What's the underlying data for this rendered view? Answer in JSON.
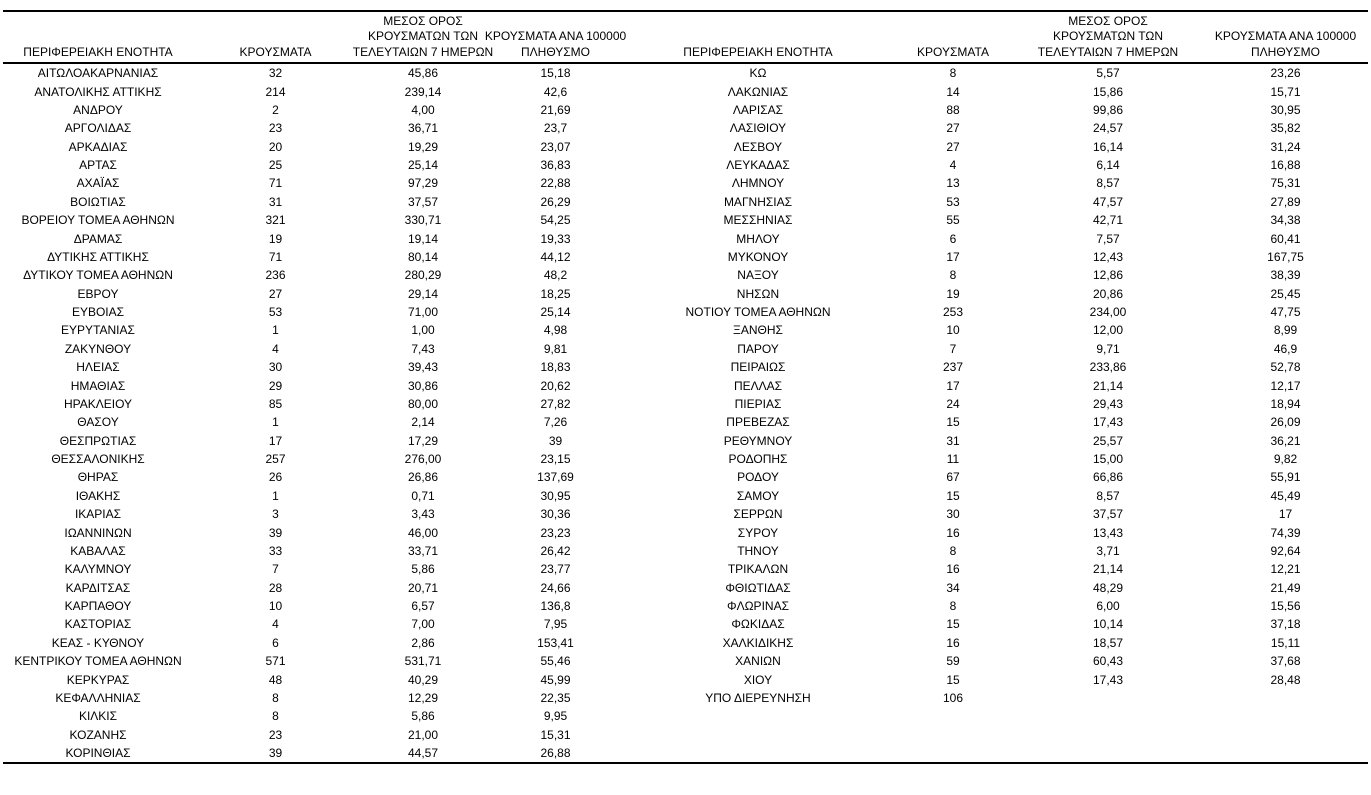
{
  "table": {
    "headers": {
      "region": "ΠΕΡΙΦΕΡΕΙΑΚΗ ΕΝΟΤΗΤΑ",
      "cases": "ΚΡΟΥΣΜΑΤΑ",
      "avg7_line1": "ΜΕΣΟΣ ΟΡΟΣ",
      "avg7_line2": "ΚΡΟΥΣΜΑΤΩΝ ΤΩΝ",
      "avg7_line3": "ΤΕΛΕΥΤΑΙΩΝ 7 ΗΜΕΡΩΝ",
      "per100k_line1": "ΚΡΟΥΣΜΑΤΑ ΑΝΑ 100000",
      "per100k_line2": "ΠΛΗΘΥΣΜΟ"
    },
    "left_rows": [
      [
        "ΑΙΤΩΛΟΑΚΑΡΝΑΝΙΑΣ",
        "32",
        "45,86",
        "15,18"
      ],
      [
        "ΑΝΑΤΟΛΙΚΗΣ ΑΤΤΙΚΗΣ",
        "214",
        "239,14",
        "42,6"
      ],
      [
        "ΑΝΔΡΟΥ",
        "2",
        "4,00",
        "21,69"
      ],
      [
        "ΑΡΓΟΛΙΔΑΣ",
        "23",
        "36,71",
        "23,7"
      ],
      [
        "ΑΡΚΑΔΙΑΣ",
        "20",
        "19,29",
        "23,07"
      ],
      [
        "ΑΡΤΑΣ",
        "25",
        "25,14",
        "36,83"
      ],
      [
        "ΑΧΑΪΑΣ",
        "71",
        "97,29",
        "22,88"
      ],
      [
        "ΒΟΙΩΤΙΑΣ",
        "31",
        "37,57",
        "26,29"
      ],
      [
        "ΒΟΡΕΙΟΥ ΤΟΜΕΑ ΑΘΗΝΩΝ",
        "321",
        "330,71",
        "54,25"
      ],
      [
        "ΔΡΑΜΑΣ",
        "19",
        "19,14",
        "19,33"
      ],
      [
        "ΔΥΤΙΚΗΣ ΑΤΤΙΚΗΣ",
        "71",
        "80,14",
        "44,12"
      ],
      [
        "ΔΥΤΙΚΟΥ ΤΟΜΕΑ ΑΘΗΝΩΝ",
        "236",
        "280,29",
        "48,2"
      ],
      [
        "ΕΒΡΟΥ",
        "27",
        "29,14",
        "18,25"
      ],
      [
        "ΕΥΒΟΙΑΣ",
        "53",
        "71,00",
        "25,14"
      ],
      [
        "ΕΥΡΥΤΑΝΙΑΣ",
        "1",
        "1,00",
        "4,98"
      ],
      [
        "ΖΑΚΥΝΘΟΥ",
        "4",
        "7,43",
        "9,81"
      ],
      [
        "ΗΛΕΙΑΣ",
        "30",
        "39,43",
        "18,83"
      ],
      [
        "ΗΜΑΘΙΑΣ",
        "29",
        "30,86",
        "20,62"
      ],
      [
        "ΗΡΑΚΛΕΙΟΥ",
        "85",
        "80,00",
        "27,82"
      ],
      [
        "ΘΑΣΟΥ",
        "1",
        "2,14",
        "7,26"
      ],
      [
        "ΘΕΣΠΡΩΤΙΑΣ",
        "17",
        "17,29",
        "39"
      ],
      [
        "ΘΕΣΣΑΛΟΝΙΚΗΣ",
        "257",
        "276,00",
        "23,15"
      ],
      [
        "ΘΗΡΑΣ",
        "26",
        "26,86",
        "137,69"
      ],
      [
        "ΙΘΑΚΗΣ",
        "1",
        "0,71",
        "30,95"
      ],
      [
        "ΙΚΑΡΙΑΣ",
        "3",
        "3,43",
        "30,36"
      ],
      [
        "ΙΩΑΝΝΙΝΩΝ",
        "39",
        "46,00",
        "23,23"
      ],
      [
        "ΚΑΒΑΛΑΣ",
        "33",
        "33,71",
        "26,42"
      ],
      [
        "ΚΑΛΥΜΝΟΥ",
        "7",
        "5,86",
        "23,77"
      ],
      [
        "ΚΑΡΔΙΤΣΑΣ",
        "28",
        "20,71",
        "24,66"
      ],
      [
        "ΚΑΡΠΑΘΟΥ",
        "10",
        "6,57",
        "136,8"
      ],
      [
        "ΚΑΣΤΟΡΙΑΣ",
        "4",
        "7,00",
        "7,95"
      ],
      [
        "ΚΕΑΣ - ΚΥΘΝΟΥ",
        "6",
        "2,86",
        "153,41"
      ],
      [
        "ΚΕΝΤΡΙΚΟΥ ΤΟΜΕΑ ΑΘΗΝΩΝ",
        "571",
        "531,71",
        "55,46"
      ],
      [
        "ΚΕΡΚΥΡΑΣ",
        "48",
        "40,29",
        "45,99"
      ],
      [
        "ΚΕΦΑΛΛΗΝΙΑΣ",
        "8",
        "12,29",
        "22,35"
      ],
      [
        "ΚΙΛΚΙΣ",
        "8",
        "5,86",
        "9,95"
      ],
      [
        "ΚΟΖΑΝΗΣ",
        "23",
        "21,00",
        "15,31"
      ],
      [
        "ΚΟΡΙΝΘΙΑΣ",
        "39",
        "44,57",
        "26,88"
      ]
    ],
    "right_rows": [
      [
        "ΚΩ",
        "8",
        "5,57",
        "23,26"
      ],
      [
        "ΛΑΚΩΝΙΑΣ",
        "14",
        "15,86",
        "15,71"
      ],
      [
        "ΛΑΡΙΣΑΣ",
        "88",
        "99,86",
        "30,95"
      ],
      [
        "ΛΑΣΙΘΙΟΥ",
        "27",
        "24,57",
        "35,82"
      ],
      [
        "ΛΕΣΒΟΥ",
        "27",
        "16,14",
        "31,24"
      ],
      [
        "ΛΕΥΚΑΔΑΣ",
        "4",
        "6,14",
        "16,88"
      ],
      [
        "ΛΗΜΝΟΥ",
        "13",
        "8,57",
        "75,31"
      ],
      [
        "ΜΑΓΝΗΣΙΑΣ",
        "53",
        "47,57",
        "27,89"
      ],
      [
        "ΜΕΣΣΗΝΙΑΣ",
        "55",
        "42,71",
        "34,38"
      ],
      [
        "ΜΗΛΟΥ",
        "6",
        "7,57",
        "60,41"
      ],
      [
        "ΜΥΚΟΝΟΥ",
        "17",
        "12,43",
        "167,75"
      ],
      [
        "ΝΑΞΟΥ",
        "8",
        "12,86",
        "38,39"
      ],
      [
        "ΝΗΣΩΝ",
        "19",
        "20,86",
        "25,45"
      ],
      [
        "ΝΟΤΙΟΥ ΤΟΜΕΑ ΑΘΗΝΩΝ",
        "253",
        "234,00",
        "47,75"
      ],
      [
        "ΞΑΝΘΗΣ",
        "10",
        "12,00",
        "8,99"
      ],
      [
        "ΠΑΡΟΥ",
        "7",
        "9,71",
        "46,9"
      ],
      [
        "ΠΕΙΡΑΙΩΣ",
        "237",
        "233,86",
        "52,78"
      ],
      [
        "ΠΕΛΛΑΣ",
        "17",
        "21,14",
        "12,17"
      ],
      [
        "ΠΙΕΡΙΑΣ",
        "24",
        "29,43",
        "18,94"
      ],
      [
        "ΠΡΕΒΕΖΑΣ",
        "15",
        "17,43",
        "26,09"
      ],
      [
        "ΡΕΘΥΜΝΟΥ",
        "31",
        "25,57",
        "36,21"
      ],
      [
        "ΡΟΔΟΠΗΣ",
        "11",
        "15,00",
        "9,82"
      ],
      [
        "ΡΟΔΟΥ",
        "67",
        "66,86",
        "55,91"
      ],
      [
        "ΣΑΜΟΥ",
        "15",
        "8,57",
        "45,49"
      ],
      [
        "ΣΕΡΡΩΝ",
        "30",
        "37,57",
        "17"
      ],
      [
        "ΣΥΡΟΥ",
        "16",
        "13,43",
        "74,39"
      ],
      [
        "ΤΗΝΟΥ",
        "8",
        "3,71",
        "92,64"
      ],
      [
        "ΤΡΙΚΑΛΩΝ",
        "16",
        "21,14",
        "12,21"
      ],
      [
        "ΦΘΙΩΤΙΔΑΣ",
        "34",
        "48,29",
        "21,49"
      ],
      [
        "ΦΛΩΡΙΝΑΣ",
        "8",
        "6,00",
        "15,56"
      ],
      [
        "ΦΩΚΙΔΑΣ",
        "15",
        "10,14",
        "37,18"
      ],
      [
        "ΧΑΛΚΙΔΙΚΗΣ",
        "16",
        "18,57",
        "15,11"
      ],
      [
        "ΧΑΝΙΩΝ",
        "59",
        "60,43",
        "37,68"
      ],
      [
        "ΧΙΟΥ",
        "15",
        "17,43",
        "28,48"
      ],
      [
        "ΥΠΟ ΔΙΕΡΕΥΝΗΣΗ",
        "106",
        "",
        ""
      ]
    ]
  }
}
